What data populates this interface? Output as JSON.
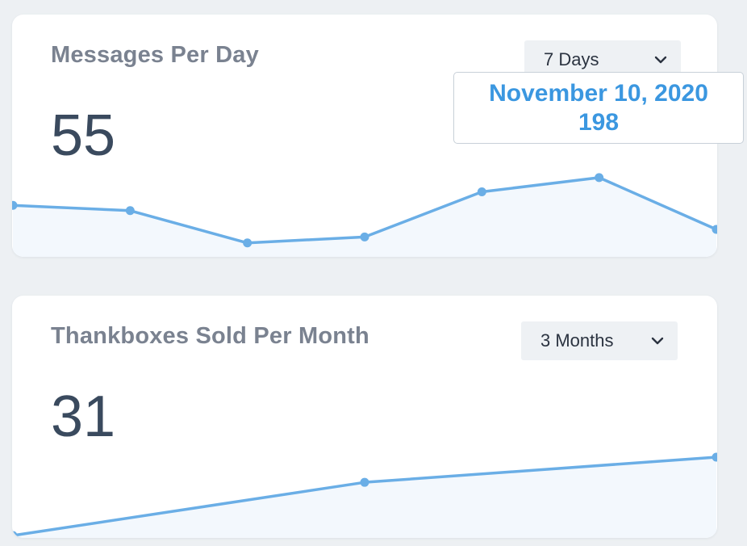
{
  "cards": [
    {
      "title": "Messages Per Day",
      "value": "55",
      "range": {
        "selected": "7 Days"
      }
    },
    {
      "title": "Thankboxes Sold Per Month",
      "value": "31",
      "range": {
        "selected": "3 Months"
      }
    }
  ],
  "tooltip": {
    "date": "November 10, 2020",
    "value": "198"
  },
  "colors": {
    "line": "#6aaee6",
    "area": "#f3f8fd",
    "tooltip_text": "#3b97e0"
  },
  "icons": {
    "dropdown": "chevron-down-icon"
  },
  "chart_data": [
    {
      "type": "area",
      "title": "Messages Per Day",
      "series": [
        {
          "values": [
            161,
            154,
            111,
            119,
            179,
            198,
            129
          ]
        }
      ],
      "highlighted_point": {
        "label": "November 10, 2020",
        "value": 198
      }
    },
    {
      "type": "area",
      "title": "Thankboxes Sold Per Month",
      "series": [
        {
          "values": [
            18,
            37,
            46
          ]
        }
      ]
    }
  ]
}
